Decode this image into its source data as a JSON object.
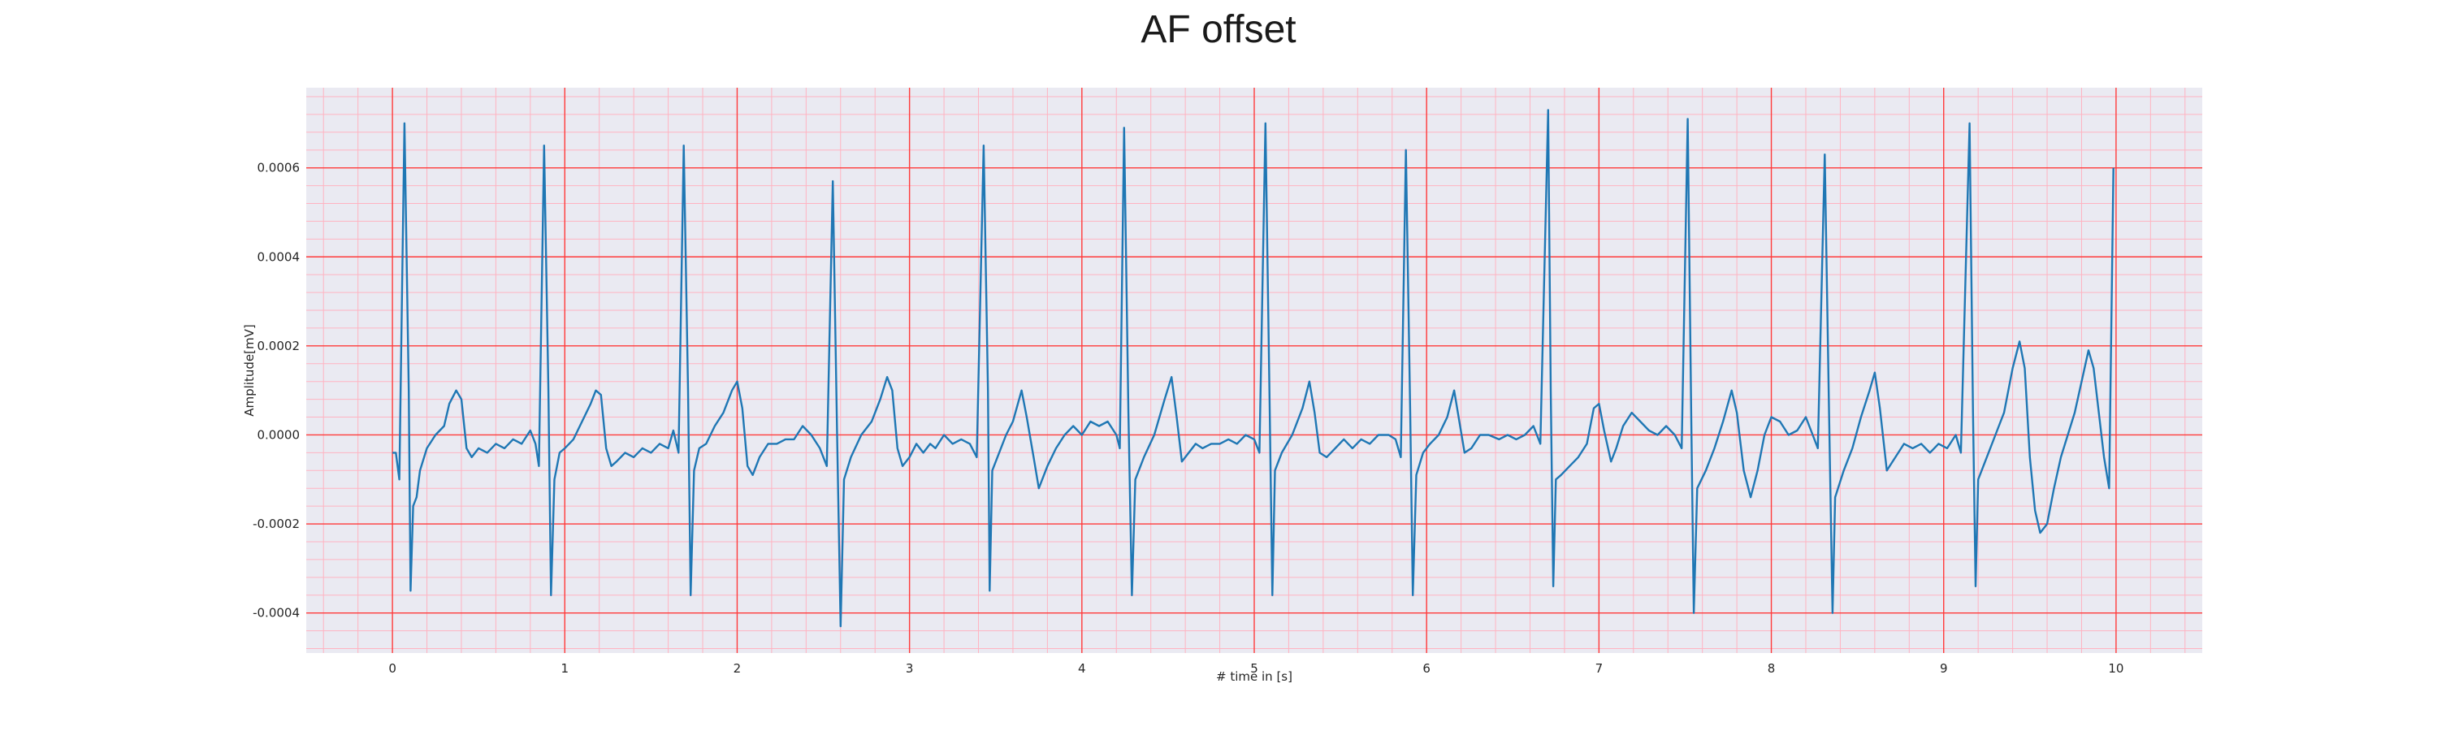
{
  "chart_data": {
    "type": "line",
    "title": "AF offset",
    "xlabel": "# time in [s]",
    "ylabel": "Amplitude[mV]",
    "xlim": [
      -0.5,
      10.5
    ],
    "ylim": [
      -0.00049,
      0.00078
    ],
    "x_ticks": [
      0,
      1,
      2,
      3,
      4,
      5,
      6,
      7,
      8,
      9,
      10
    ],
    "x_tick_labels": [
      "0",
      "1",
      "2",
      "3",
      "4",
      "5",
      "6",
      "7",
      "8",
      "9",
      "10"
    ],
    "y_ticks": [
      -0.0004,
      -0.0002,
      0.0,
      0.0002,
      0.0004,
      0.0006
    ],
    "y_tick_labels": [
      "-0.0004",
      "-0.0002",
      "0.0000",
      "0.0002",
      "0.0004",
      "0.0006"
    ],
    "grid": true,
    "minor_grid": true,
    "colors": {
      "line": "#1f77b4",
      "major_grid": "#ff3b3b",
      "minor_grid": "#ffb3c1",
      "plot_bg": "#eaeaf2"
    },
    "series": [
      {
        "points": [
          [
            0.0,
            -4e-05
          ],
          [
            0.02,
            -4e-05
          ],
          [
            0.04,
            -0.0001
          ],
          [
            0.07,
            0.0007
          ],
          [
            0.095,
            0.0001
          ],
          [
            0.105,
            -0.00035
          ],
          [
            0.12,
            -0.00016
          ],
          [
            0.14,
            -0.00014
          ],
          [
            0.16,
            -8e-05
          ],
          [
            0.2,
            -3e-05
          ],
          [
            0.25,
            0.0
          ],
          [
            0.3,
            2e-05
          ],
          [
            0.33,
            7e-05
          ],
          [
            0.37,
            0.0001
          ],
          [
            0.4,
            8e-05
          ],
          [
            0.43,
            -3e-05
          ],
          [
            0.46,
            -5e-05
          ],
          [
            0.5,
            -3e-05
          ],
          [
            0.55,
            -4e-05
          ],
          [
            0.6,
            -2e-05
          ],
          [
            0.65,
            -3e-05
          ],
          [
            0.7,
            -1e-05
          ],
          [
            0.75,
            -2e-05
          ],
          [
            0.8,
            1e-05
          ],
          [
            0.83,
            -2e-05
          ],
          [
            0.85,
            -7e-05
          ],
          [
            0.88,
            0.00065
          ],
          [
            0.905,
            0.0001
          ],
          [
            0.92,
            -0.00036
          ],
          [
            0.94,
            -0.0001
          ],
          [
            0.97,
            -4e-05
          ],
          [
            1.0,
            -3e-05
          ],
          [
            1.05,
            -1e-05
          ],
          [
            1.1,
            3e-05
          ],
          [
            1.15,
            7e-05
          ],
          [
            1.18,
            0.0001
          ],
          [
            1.21,
            9e-05
          ],
          [
            1.24,
            -3e-05
          ],
          [
            1.27,
            -7e-05
          ],
          [
            1.3,
            -6e-05
          ],
          [
            1.35,
            -4e-05
          ],
          [
            1.4,
            -5e-05
          ],
          [
            1.45,
            -3e-05
          ],
          [
            1.5,
            -4e-05
          ],
          [
            1.55,
            -2e-05
          ],
          [
            1.6,
            -3e-05
          ],
          [
            1.63,
            1e-05
          ],
          [
            1.66,
            -4e-05
          ],
          [
            1.69,
            0.00065
          ],
          [
            1.715,
            0.0001
          ],
          [
            1.73,
            -0.00036
          ],
          [
            1.75,
            -8e-05
          ],
          [
            1.78,
            -3e-05
          ],
          [
            1.82,
            -2e-05
          ],
          [
            1.87,
            2e-05
          ],
          [
            1.92,
            5e-05
          ],
          [
            1.97,
            0.0001
          ],
          [
            2.0,
            0.00012
          ],
          [
            2.03,
            6e-05
          ],
          [
            2.06,
            -7e-05
          ],
          [
            2.09,
            -9e-05
          ],
          [
            2.13,
            -5e-05
          ],
          [
            2.18,
            -2e-05
          ],
          [
            2.23,
            -2e-05
          ],
          [
            2.28,
            -1e-05
          ],
          [
            2.33,
            -1e-05
          ],
          [
            2.38,
            2e-05
          ],
          [
            2.43,
            0.0
          ],
          [
            2.48,
            -3e-05
          ],
          [
            2.52,
            -7e-05
          ],
          [
            2.555,
            0.00057
          ],
          [
            2.58,
            0.0
          ],
          [
            2.6,
            -0.00043
          ],
          [
            2.62,
            -0.0001
          ],
          [
            2.66,
            -5e-05
          ],
          [
            2.72,
            0.0
          ],
          [
            2.78,
            3e-05
          ],
          [
            2.83,
            8e-05
          ],
          [
            2.87,
            0.00013
          ],
          [
            2.9,
            0.0001
          ],
          [
            2.93,
            -3e-05
          ],
          [
            2.96,
            -7e-05
          ],
          [
            3.0,
            -5e-05
          ],
          [
            3.04,
            -2e-05
          ],
          [
            3.08,
            -4e-05
          ],
          [
            3.12,
            -2e-05
          ],
          [
            3.15,
            -3e-05
          ],
          [
            3.2,
            0.0
          ],
          [
            3.25,
            -2e-05
          ],
          [
            3.3,
            -1e-05
          ],
          [
            3.35,
            -2e-05
          ],
          [
            3.39,
            -5e-05
          ],
          [
            3.43,
            0.00065
          ],
          [
            3.455,
            0.0001
          ],
          [
            3.465,
            -0.00035
          ],
          [
            3.48,
            -8e-05
          ],
          [
            3.52,
            -4e-05
          ],
          [
            3.56,
            0.0
          ],
          [
            3.6,
            3e-05
          ],
          [
            3.65,
            0.0001
          ],
          [
            3.68,
            4e-05
          ],
          [
            3.72,
            -5e-05
          ],
          [
            3.75,
            -0.00012
          ],
          [
            3.8,
            -7e-05
          ],
          [
            3.85,
            -3e-05
          ],
          [
            3.9,
            0.0
          ],
          [
            3.95,
            2e-05
          ],
          [
            4.0,
            0.0
          ],
          [
            4.05,
            3e-05
          ],
          [
            4.1,
            2e-05
          ],
          [
            4.15,
            3e-05
          ],
          [
            4.2,
            0.0
          ],
          [
            4.22,
            -3e-05
          ],
          [
            4.245,
            0.00069
          ],
          [
            4.27,
            5e-05
          ],
          [
            4.29,
            -0.00036
          ],
          [
            4.31,
            -0.0001
          ],
          [
            4.36,
            -5e-05
          ],
          [
            4.42,
            -0.0
          ],
          [
            4.48,
            8e-05
          ],
          [
            4.52,
            0.00013
          ],
          [
            4.55,
            4e-05
          ],
          [
            4.58,
            -6e-05
          ],
          [
            4.62,
            -4e-05
          ],
          [
            4.66,
            -2e-05
          ],
          [
            4.7,
            -3e-05
          ],
          [
            4.75,
            -2e-05
          ],
          [
            4.8,
            -2e-05
          ],
          [
            4.85,
            -1e-05
          ],
          [
            4.9,
            -2e-05
          ],
          [
            4.95,
            0.0
          ],
          [
            5.0,
            -1e-05
          ],
          [
            5.03,
            -4e-05
          ],
          [
            5.065,
            0.0007
          ],
          [
            5.09,
            5e-05
          ],
          [
            5.105,
            -0.00036
          ],
          [
            5.12,
            -8e-05
          ],
          [
            5.16,
            -4e-05
          ],
          [
            5.22,
            0.0
          ],
          [
            5.28,
            6e-05
          ],
          [
            5.32,
            0.00012
          ],
          [
            5.35,
            5e-05
          ],
          [
            5.38,
            -4e-05
          ],
          [
            5.42,
            -5e-05
          ],
          [
            5.47,
            -3e-05
          ],
          [
            5.52,
            -1e-05
          ],
          [
            5.57,
            -3e-05
          ],
          [
            5.62,
            -1e-05
          ],
          [
            5.67,
            -2e-05
          ],
          [
            5.72,
            0.0
          ],
          [
            5.78,
            0.0
          ],
          [
            5.82,
            -1e-05
          ],
          [
            5.85,
            -5e-05
          ],
          [
            5.88,
            0.00064
          ],
          [
            5.905,
            5e-05
          ],
          [
            5.92,
            -0.00036
          ],
          [
            5.94,
            -9e-05
          ],
          [
            5.98,
            -4e-05
          ],
          [
            6.02,
            -2e-05
          ],
          [
            6.07,
            0.0
          ],
          [
            6.12,
            4e-05
          ],
          [
            6.16,
            0.0001
          ],
          [
            6.19,
            3e-05
          ],
          [
            6.22,
            -4e-05
          ],
          [
            6.26,
            -3e-05
          ],
          [
            6.31,
            0.0
          ],
          [
            6.36,
            0.0
          ],
          [
            6.42,
            -1e-05
          ],
          [
            6.47,
            0.0
          ],
          [
            6.52,
            -1e-05
          ],
          [
            6.57,
            0.0
          ],
          [
            6.62,
            2e-05
          ],
          [
            6.66,
            -2e-05
          ],
          [
            6.705,
            0.00073
          ],
          [
            6.72,
            0.0001
          ],
          [
            6.735,
            -0.00034
          ],
          [
            6.75,
            -0.0001
          ],
          [
            6.78,
            -9e-05
          ],
          [
            6.83,
            -7e-05
          ],
          [
            6.88,
            -5e-05
          ],
          [
            6.93,
            -2e-05
          ],
          [
            6.97,
            6e-05
          ],
          [
            7.0,
            7e-05
          ],
          [
            7.03,
            1e-05
          ],
          [
            7.07,
            -6e-05
          ],
          [
            7.1,
            -3e-05
          ],
          [
            7.14,
            2e-05
          ],
          [
            7.19,
            5e-05
          ],
          [
            7.24,
            3e-05
          ],
          [
            7.29,
            1e-05
          ],
          [
            7.34,
            0.0
          ],
          [
            7.39,
            2e-05
          ],
          [
            7.44,
            0.0
          ],
          [
            7.48,
            -3e-05
          ],
          [
            7.515,
            0.00071
          ],
          [
            7.535,
            5e-05
          ],
          [
            7.55,
            -0.0004
          ],
          [
            7.57,
            -0.00012
          ],
          [
            7.62,
            -8e-05
          ],
          [
            7.67,
            -3e-05
          ],
          [
            7.72,
            3e-05
          ],
          [
            7.77,
            0.0001
          ],
          [
            7.8,
            5e-05
          ],
          [
            7.84,
            -8e-05
          ],
          [
            7.88,
            -0.00014
          ],
          [
            7.92,
            -8e-05
          ],
          [
            7.96,
            0.0
          ],
          [
            8.0,
            4e-05
          ],
          [
            8.05,
            3e-05
          ],
          [
            8.1,
            0.0
          ],
          [
            8.15,
            1e-05
          ],
          [
            8.2,
            4e-05
          ],
          [
            8.24,
            0.0
          ],
          [
            8.27,
            -3e-05
          ],
          [
            8.31,
            0.00063
          ],
          [
            8.335,
            5e-05
          ],
          [
            8.355,
            -0.0004
          ],
          [
            8.37,
            -0.00014
          ],
          [
            8.42,
            -8e-05
          ],
          [
            8.47,
            -3e-05
          ],
          [
            8.52,
            4e-05
          ],
          [
            8.57,
            0.0001
          ],
          [
            8.6,
            0.00014
          ],
          [
            8.63,
            6e-05
          ],
          [
            8.67,
            -8e-05
          ],
          [
            8.72,
            -5e-05
          ],
          [
            8.77,
            -2e-05
          ],
          [
            8.82,
            -3e-05
          ],
          [
            8.87,
            -2e-05
          ],
          [
            8.92,
            -4e-05
          ],
          [
            8.97,
            -2e-05
          ],
          [
            9.02,
            -3e-05
          ],
          [
            9.07,
            0.0
          ],
          [
            9.1,
            -4e-05
          ],
          [
            9.15,
            0.0007
          ],
          [
            9.17,
            5e-05
          ],
          [
            9.185,
            -0.00034
          ],
          [
            9.2,
            -0.0001
          ],
          [
            9.25,
            -5e-05
          ],
          [
            9.3,
            0.0
          ],
          [
            9.35,
            5e-05
          ],
          [
            9.4,
            0.00015
          ],
          [
            9.44,
            0.00021
          ],
          [
            9.47,
            0.00015
          ],
          [
            9.5,
            -5e-05
          ],
          [
            9.53,
            -0.00017
          ],
          [
            9.56,
            -0.00022
          ],
          [
            9.6,
            -0.0002
          ],
          [
            9.64,
            -0.00012
          ],
          [
            9.68,
            -5e-05
          ],
          [
            9.72,
            0.0
          ],
          [
            9.76,
            5e-05
          ],
          [
            9.8,
            0.00012
          ],
          [
            9.84,
            0.00019
          ],
          [
            9.87,
            0.00015
          ],
          [
            9.9,
            5e-05
          ],
          [
            9.93,
            -5e-05
          ],
          [
            9.96,
            -0.00012
          ],
          [
            9.985,
            0.0006
          ]
        ]
      }
    ]
  }
}
